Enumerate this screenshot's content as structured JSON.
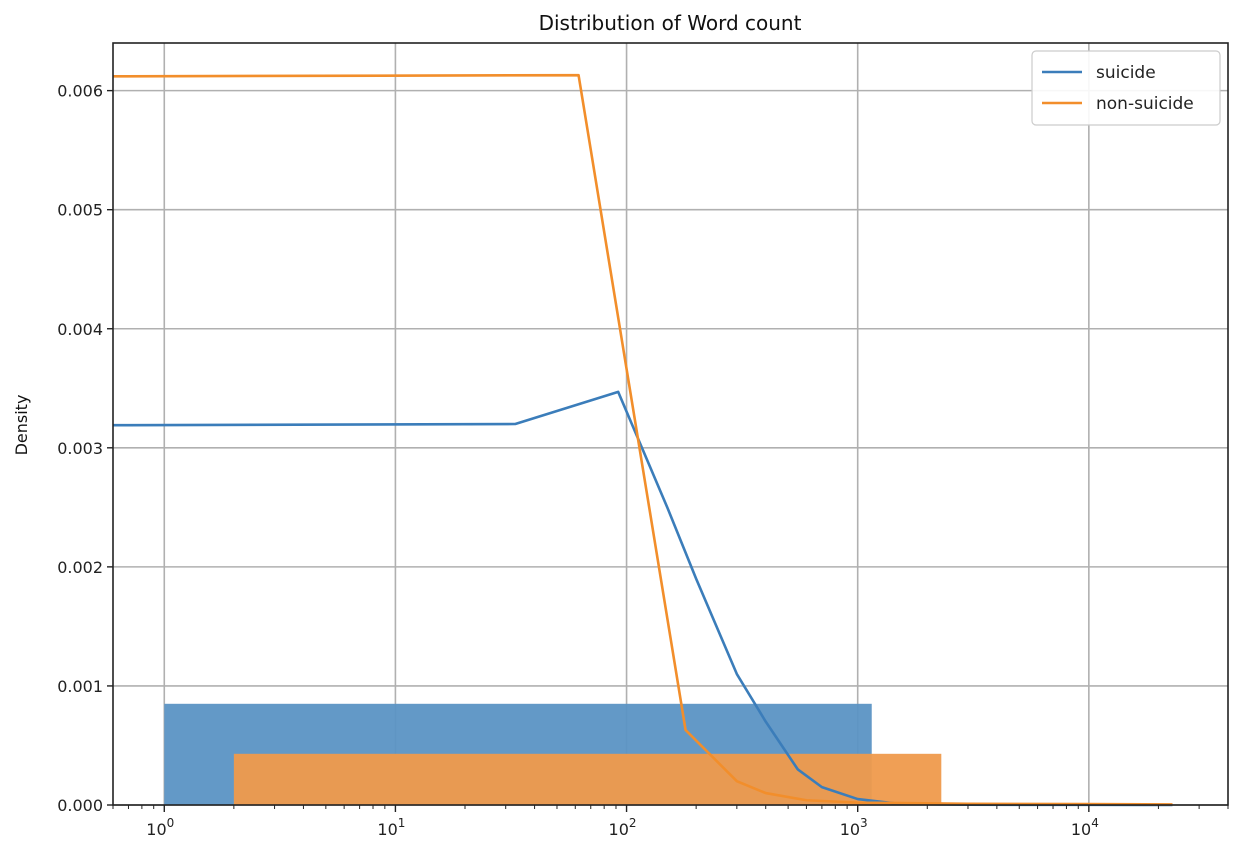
{
  "chart_data": {
    "type": "line",
    "title": "Distribution of Word count",
    "xlabel": "",
    "ylabel": "Density",
    "x_scale": "log",
    "xlim": [
      0.6,
      40000
    ],
    "ylim": [
      0,
      0.0064
    ],
    "grid": true,
    "legend_position": "top-right",
    "x_ticks": [
      {
        "value": 1,
        "base": "10",
        "exp": "0"
      },
      {
        "value": 10,
        "base": "10",
        "exp": "1"
      },
      {
        "value": 100,
        "base": "10",
        "exp": "2"
      },
      {
        "value": 1000,
        "base": "10",
        "exp": "3"
      },
      {
        "value": 10000,
        "base": "10",
        "exp": "4"
      }
    ],
    "y_ticks": [
      {
        "value": 0,
        "label": "0.000"
      },
      {
        "value": 0.001,
        "label": "0.001"
      },
      {
        "value": 0.002,
        "label": "0.002"
      },
      {
        "value": 0.003,
        "label": "0.003"
      },
      {
        "value": 0.004,
        "label": "0.004"
      },
      {
        "value": 0.005,
        "label": "0.005"
      },
      {
        "value": 0.006,
        "label": "0.006"
      }
    ],
    "series": [
      {
        "name": "suicide",
        "color": "#3b7dba",
        "bar_color": "#5b93c4",
        "histogram": {
          "x_start": 1,
          "x_end": 1150,
          "density": 0.00085
        },
        "kde": [
          [
            0.6,
            0.00319
          ],
          [
            33,
            0.0032
          ],
          [
            92,
            0.00347
          ],
          [
            150,
            0.0025
          ],
          [
            200,
            0.0019
          ],
          [
            300,
            0.0011
          ],
          [
            400,
            0.0007
          ],
          [
            550,
            0.0003
          ],
          [
            700,
            0.00015
          ],
          [
            1000,
            5e-05
          ],
          [
            1500,
            1e-05
          ],
          [
            3000,
            2e-06
          ],
          [
            10000,
            1e-06
          ],
          [
            23000,
            5e-07
          ]
        ]
      },
      {
        "name": "non-suicide",
        "color": "#f28e2b",
        "bar_color": "#ef9a4c",
        "histogram": {
          "x_start": 2,
          "x_end": 2300,
          "density": 0.00043
        },
        "kde": [
          [
            0.6,
            0.00612
          ],
          [
            62,
            0.00613
          ],
          [
            180,
            0.00063
          ],
          [
            300,
            0.0002
          ],
          [
            400,
            0.0001
          ],
          [
            600,
            4e-05
          ],
          [
            1000,
            2e-05
          ],
          [
            3000,
            1e-05
          ],
          [
            10000,
            8e-06
          ],
          [
            23000,
            5e-06
          ]
        ]
      }
    ]
  }
}
